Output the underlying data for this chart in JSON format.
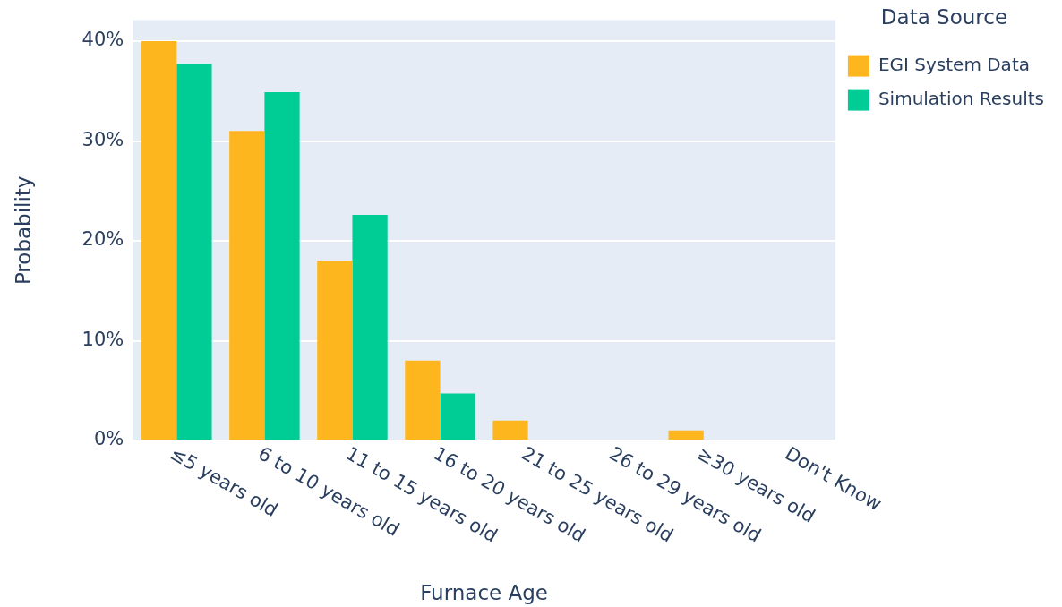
{
  "chart_data": {
    "type": "bar",
    "xlabel": "Furnace Age",
    "ylabel": "Probability",
    "legend_title": "Data Source",
    "legend": "top right",
    "grid": "y",
    "categories": [
      "≤5 years old",
      "6 to 10 years old",
      "11 to 15 years old",
      "16 to 20 years old",
      "21 to 25 years old",
      "26 to 29 years old",
      "≥30 years old",
      "Don't Know"
    ],
    "series": [
      {
        "name": "EGI System Data",
        "color": "#fdb61d",
        "values": [
          40,
          31,
          18,
          8,
          2,
          0,
          1,
          0
        ]
      },
      {
        "name": "Simulation Results",
        "color": "#00cc96",
        "values": [
          37.7,
          34.9,
          22.6,
          4.7,
          0,
          0,
          0,
          0
        ]
      }
    ],
    "ylim": [
      0,
      42.1
    ],
    "yticks": [
      {
        "value": 0,
        "label": "0%"
      },
      {
        "value": 10,
        "label": "10%"
      },
      {
        "value": 20,
        "label": "20%"
      },
      {
        "value": 30,
        "label": "30%"
      },
      {
        "value": 40,
        "label": "40%"
      }
    ]
  }
}
